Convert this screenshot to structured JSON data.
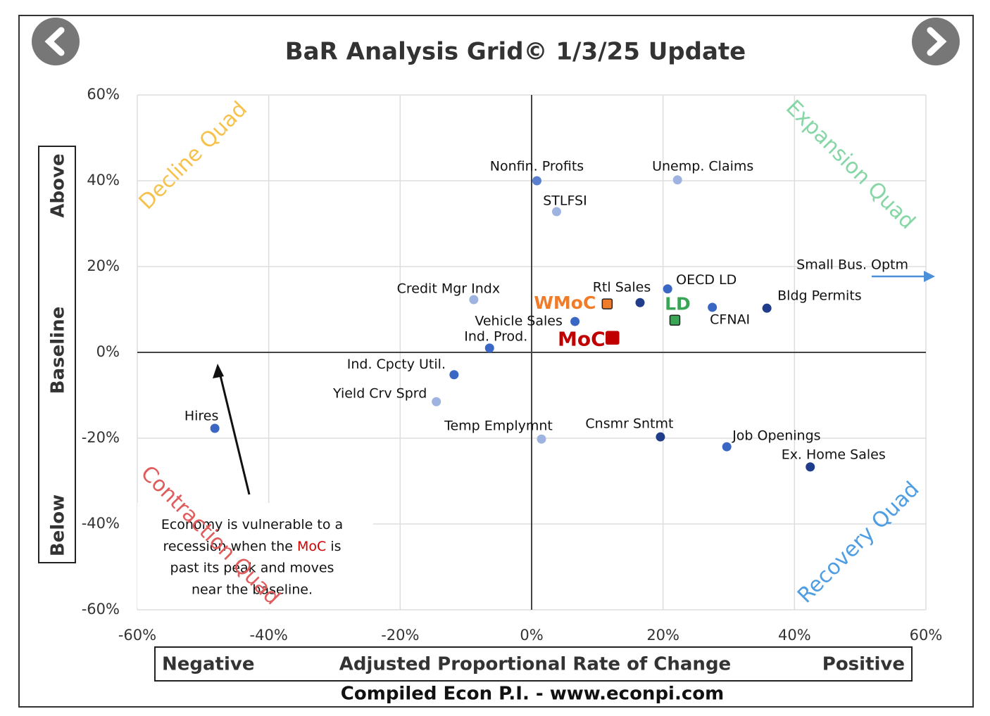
{
  "chart_data": {
    "type": "scatter",
    "title": "BaR Analysis Grid© 1/3/25 Update",
    "xlabel": {
      "left": "Negative",
      "center": "Adjusted Proportional Rate of Change",
      "right": "Positive"
    },
    "ylabel": {
      "top": "Above",
      "middle": "Baseline",
      "bottom": "Below"
    },
    "source": "Compiled Econ P.I. - www.econpi.com",
    "quadrants": {
      "top_left": "Decline Quad",
      "top_right": "Expansion Quad",
      "bottom_left": "Contraction Quad",
      "bottom_right": "Recovery Quad"
    },
    "quadrant_colors": {
      "top_left": "#f6c24c",
      "top_right": "#86d6a6",
      "bottom_left": "#e05c5c",
      "bottom_right": "#4f9de2"
    },
    "annotation": {
      "before": "Economy is vulnerable to a recession when the ",
      "highlight": "MoC",
      "after": " is past its peak and moves near the baseline."
    },
    "xlim": [
      -60,
      60
    ],
    "ylim": [
      -60,
      60
    ],
    "xticks": [
      {
        "value": -60,
        "label": "-60%"
      },
      {
        "value": -40,
        "label": "-40%"
      },
      {
        "value": -20,
        "label": "-20%"
      },
      {
        "value": 0,
        "label": "0%"
      },
      {
        "value": 20,
        "label": "20%"
      },
      {
        "value": 40,
        "label": "40%"
      },
      {
        "value": 60,
        "label": "60%"
      }
    ],
    "yticks": [
      {
        "value": -60,
        "label": "-60%"
      },
      {
        "value": -40,
        "label": "-40%"
      },
      {
        "value": -20,
        "label": "-20%"
      },
      {
        "value": 0,
        "label": "0%"
      },
      {
        "value": 20,
        "label": "20%"
      },
      {
        "value": 40,
        "label": "40%"
      },
      {
        "value": 60,
        "label": "60%"
      }
    ],
    "grid": true,
    "points": [
      {
        "label": "Nonfin. Profits",
        "x": 0.8,
        "y": 40,
        "color": "#5b7fcf"
      },
      {
        "label": "Unemp. Claims",
        "x": 22.2,
        "y": 40.2,
        "color": "#9fb3e0"
      },
      {
        "label": "STLFSI",
        "x": 3.8,
        "y": 32.8,
        "color": "#9fb3e0"
      },
      {
        "label": "Credit Mgr Indx",
        "x": -8.8,
        "y": 12.3,
        "color": "#9fb3e0"
      },
      {
        "label": "Rtl Sales",
        "x": 16.5,
        "y": 11.6,
        "color": "#1f3d8a"
      },
      {
        "label": "OECD LD",
        "x": 20.7,
        "y": 14.8,
        "color": "#3a66c4"
      },
      {
        "label": "Bldg Permits",
        "x": 35.8,
        "y": 10.3,
        "color": "#1f3d8a"
      },
      {
        "label": "CFNAI",
        "x": 27.5,
        "y": 10.5,
        "color": "#3a66c4"
      },
      {
        "label": "Vehicle Sales",
        "x": 6.6,
        "y": 7.2,
        "color": "#3a66c4"
      },
      {
        "label": "Ind. Prod.",
        "x": -6.4,
        "y": 1,
        "color": "#3a66c4"
      },
      {
        "label": "Ind. Cpcty Util.",
        "x": -11.8,
        "y": -5.2,
        "color": "#3a66c4"
      },
      {
        "label": "Yield Crv Sprd",
        "x": -14.5,
        "y": -11.5,
        "color": "#9fb3e0"
      },
      {
        "label": "Hires",
        "x": -48.2,
        "y": -17.7,
        "color": "#3a66c4"
      },
      {
        "label": "Temp Emplymnt",
        "x": 1.5,
        "y": -20.2,
        "color": "#9fb3e0"
      },
      {
        "label": "Cnsmr Sntmt",
        "x": 19.6,
        "y": -19.7,
        "color": "#1f3d8a"
      },
      {
        "label": "Job Openings",
        "x": 29.7,
        "y": -22,
        "color": "#3a66c4"
      },
      {
        "label": "Ex. Home Sales",
        "x": 42.4,
        "y": -26.7,
        "color": "#1f3d8a"
      }
    ],
    "markers": [
      {
        "label": "WMoC",
        "x": 11.5,
        "y": 11.3,
        "color": "#f07c2a"
      },
      {
        "label": "LD",
        "x": 21.8,
        "y": 7.5,
        "color": "#3aa655"
      },
      {
        "label": "MoC",
        "x": 12.3,
        "y": 3.4,
        "color": "#c00000"
      }
    ],
    "offscale": {
      "label": "Small Bus. Optm",
      "y": 17.7,
      "color": "#4a8fd8"
    }
  }
}
